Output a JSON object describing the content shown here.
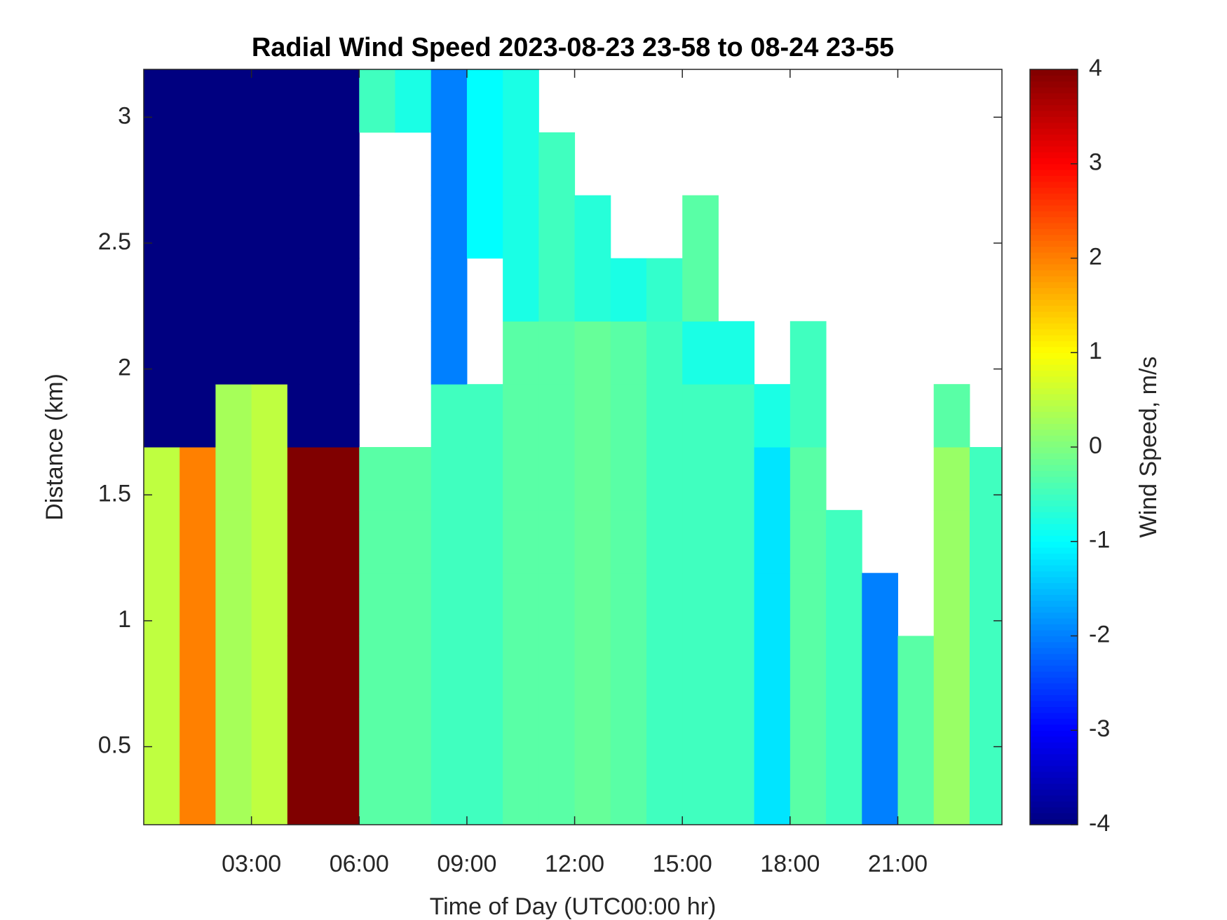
{
  "chart_data": {
    "type": "heatmap",
    "title": "Radial Wind Speed 2023-08-23 23-58 to 08-24 23-55",
    "x_label": "Time of Day (UTC00:00 hr)",
    "y_label": "Distance (km)",
    "colorbar_label": "Wind Speed, m/s",
    "colormap": "jet",
    "clim": [
      -4,
      4
    ],
    "cticks": [
      -4,
      -3,
      -2,
      -1,
      0,
      1,
      2,
      3,
      4
    ],
    "xlim": [
      0,
      23.9
    ],
    "xticks": [
      {
        "value": 3,
        "label": "03:00"
      },
      {
        "value": 6,
        "label": "06:00"
      },
      {
        "value": 9,
        "label": "09:00"
      },
      {
        "value": 12,
        "label": "12:00"
      },
      {
        "value": 15,
        "label": "15:00"
      },
      {
        "value": 18,
        "label": "18:00"
      },
      {
        "value": 21,
        "label": "21:00"
      }
    ],
    "ylim": [
      0.19,
      3.19
    ],
    "yticks": [
      0.5,
      1,
      1.5,
      2,
      2.5,
      3
    ],
    "x_edges": [
      0,
      1,
      2,
      3,
      4,
      5,
      6,
      7,
      8,
      9,
      10,
      11,
      12,
      13,
      14,
      15,
      16,
      17,
      18,
      19,
      20,
      21,
      22,
      23,
      23.9
    ],
    "y_edges": [
      0.19,
      0.44,
      0.69,
      0.94,
      1.19,
      1.44,
      1.69,
      1.94,
      2.19,
      2.44,
      2.69,
      2.94,
      3.19
    ],
    "z": [
      [
        0.5,
        0.5,
        0.5,
        0.5,
        0.5,
        0.5,
        -4,
        -4,
        -4,
        -4,
        -4,
        -4
      ],
      [
        2,
        2,
        2,
        2,
        2,
        2,
        -4,
        -4,
        -4,
        -4,
        -4,
        -4
      ],
      [
        0.3,
        0.3,
        0.3,
        0.3,
        0.3,
        0.3,
        0.3,
        -4,
        -4,
        -4,
        -4,
        -4
      ],
      [
        0.5,
        0.5,
        0.5,
        0.5,
        0.5,
        0.5,
        0.5,
        -4,
        -4,
        -4,
        -4,
        -4
      ],
      [
        4,
        4,
        4,
        4,
        4,
        4,
        -4,
        -4,
        -4,
        -4,
        -4,
        -4
      ],
      [
        4,
        4,
        4,
        4,
        4,
        4,
        -4,
        -4,
        -4,
        -4,
        -4,
        -4
      ],
      [
        -0.3,
        -0.3,
        -0.3,
        -0.3,
        -0.3,
        -0.3,
        null,
        null,
        null,
        null,
        null,
        -0.5
      ],
      [
        -0.3,
        -0.3,
        -0.3,
        -0.3,
        -0.3,
        -0.3,
        null,
        null,
        null,
        null,
        null,
        -0.8
      ],
      [
        -0.5,
        -0.5,
        -0.5,
        -0.5,
        -0.5,
        -0.5,
        -0.5,
        -2,
        -2,
        -2,
        -2,
        -2
      ],
      [
        -0.5,
        -0.5,
        -0.5,
        -0.5,
        -0.5,
        -0.5,
        -0.5,
        null,
        null,
        -1,
        -1,
        -1
      ],
      [
        -0.3,
        -0.3,
        -0.3,
        -0.3,
        -0.3,
        -0.3,
        -0.3,
        -0.3,
        -0.8,
        -0.8,
        -0.8,
        -0.8
      ],
      [
        -0.3,
        -0.3,
        -0.3,
        -0.3,
        -0.3,
        -0.3,
        -0.3,
        -0.3,
        -0.5,
        -0.5,
        -0.5,
        null
      ],
      [
        -0.2,
        -0.2,
        -0.2,
        -0.2,
        -0.2,
        -0.2,
        -0.2,
        -0.2,
        -0.7,
        -0.7,
        null,
        null
      ],
      [
        -0.3,
        -0.3,
        -0.3,
        -0.3,
        -0.3,
        -0.3,
        -0.3,
        -0.3,
        -0.8,
        null,
        null,
        null
      ],
      [
        -0.5,
        -0.5,
        -0.5,
        -0.5,
        -0.5,
        -0.5,
        -0.5,
        -0.5,
        -0.6,
        null,
        null,
        null
      ],
      [
        -0.5,
        -0.5,
        -0.5,
        -0.5,
        -0.5,
        -0.5,
        -0.5,
        -0.8,
        -0.3,
        -0.3,
        null,
        null
      ],
      [
        -0.5,
        -0.5,
        -0.5,
        -0.5,
        -0.5,
        -0.5,
        -0.5,
        -0.8,
        null,
        null,
        null,
        null
      ],
      [
        -1.2,
        -1.2,
        -1.2,
        -1.2,
        -1.2,
        -1.2,
        -0.8,
        null,
        null,
        null,
        null,
        null
      ],
      [
        -0.3,
        -0.3,
        -0.3,
        -0.3,
        -0.3,
        -0.3,
        -0.5,
        -0.5,
        null,
        null,
        null,
        null
      ],
      [
        -0.5,
        -0.5,
        -0.5,
        -0.5,
        -0.5,
        null,
        null,
        null,
        null,
        null,
        null,
        null
      ],
      [
        -2,
        -2,
        -2,
        -2,
        null,
        null,
        null,
        null,
        null,
        null,
        null,
        null
      ],
      [
        -0.3,
        -0.3,
        -0.3,
        null,
        null,
        null,
        null,
        null,
        null,
        null,
        null,
        null
      ],
      [
        0.2,
        0.2,
        0.2,
        0.2,
        0.2,
        0.2,
        -0.3,
        null,
        null,
        null,
        null,
        null
      ],
      [
        -0.5,
        -0.5,
        -0.5,
        -0.5,
        -0.5,
        -0.5,
        null,
        null,
        null,
        null,
        null,
        null
      ]
    ]
  }
}
